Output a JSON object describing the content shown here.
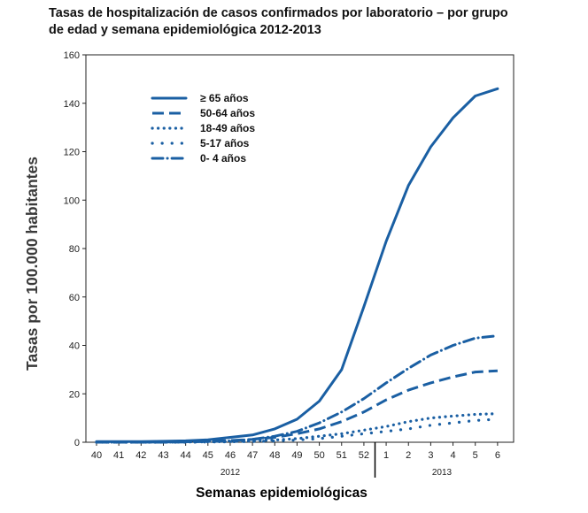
{
  "chart_data": {
    "type": "line",
    "title": "Tasas de hospitalización de casos confirmados por laboratorio – por grupo\nde edad y semana epidemiológica 2012-2013",
    "xlabel": "Semanas epidemiológicas",
    "ylabel": "Tasas por 100.000 habitantes",
    "ylim": [
      0,
      160
    ],
    "yticks": [
      0,
      20,
      40,
      60,
      80,
      100,
      120,
      140,
      160
    ],
    "categories": [
      "40",
      "41",
      "42",
      "43",
      "44",
      "45",
      "46",
      "47",
      "48",
      "49",
      "50",
      "51",
      "52",
      "1",
      "2",
      "3",
      "4",
      "5",
      "6"
    ],
    "year_groups": [
      {
        "label": "2012",
        "from": 0,
        "to": 12
      },
      {
        "label": "2013",
        "from": 13,
        "to": 18
      }
    ],
    "color": "#1a5fa3",
    "legend_position": "top-left",
    "series": [
      {
        "name": "≥ 65 años",
        "style": "solid",
        "values": [
          0.3,
          0.3,
          0.3,
          0.4,
          0.6,
          1.0,
          2.0,
          3.0,
          5.5,
          9.5,
          17,
          30,
          56,
          83,
          106,
          122,
          134,
          143,
          146
        ]
      },
      {
        "name": "50-64 años",
        "style": "dash",
        "values": [
          0,
          0,
          0,
          0.1,
          0.2,
          0.4,
          0.7,
          1.2,
          2.0,
          3.5,
          5.5,
          8.5,
          12.5,
          17.5,
          21.5,
          24.5,
          27,
          29,
          29.5
        ]
      },
      {
        "name": "18-49 años",
        "style": "dot",
        "values": [
          0,
          0,
          0,
          0,
          0.1,
          0.2,
          0.3,
          0.5,
          0.9,
          1.5,
          2.5,
          3.5,
          5.0,
          6.5,
          8.5,
          10,
          10.8,
          11.5,
          11.8
        ]
      },
      {
        "name": "5-17 años",
        "style": "sparse-dot",
        "values": [
          0,
          0,
          0,
          0,
          0,
          0.1,
          0.2,
          0.3,
          0.5,
          0.9,
          1.5,
          2.5,
          3.5,
          4.5,
          5.5,
          7.0,
          8.0,
          9.0,
          9.5
        ]
      },
      {
        "name": "0- 4 años",
        "style": "dashdot",
        "values": [
          0,
          0,
          0,
          0,
          0.1,
          0.3,
          0.6,
          1.2,
          2.5,
          4.5,
          8,
          12.5,
          18,
          24.5,
          30.5,
          36,
          40,
          43,
          44
        ]
      }
    ]
  }
}
